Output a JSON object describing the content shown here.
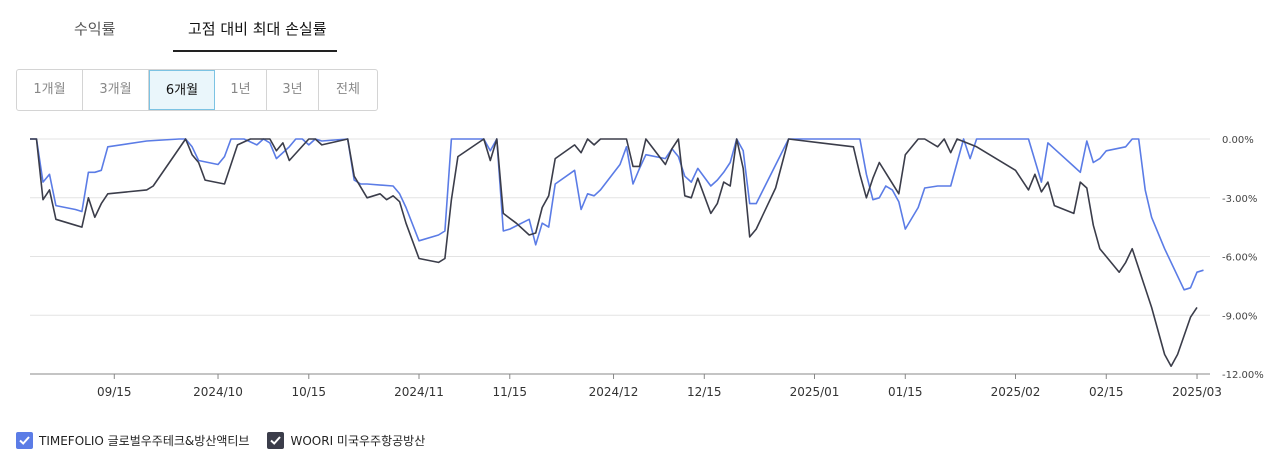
{
  "tabs": [
    {
      "label": "수익률",
      "active": false
    },
    {
      "label": "고점 대비 최대 손실률",
      "active": true
    }
  ],
  "periods": [
    {
      "label": "1개월",
      "active": false
    },
    {
      "label": "3개월",
      "active": false
    },
    {
      "label": "6개월",
      "active": true
    },
    {
      "label": "1년",
      "active": false
    },
    {
      "label": "3년",
      "active": false
    },
    {
      "label": "전체",
      "active": false
    }
  ],
  "legend": [
    {
      "label": "TIMEFOLIO 글로벌우주테크&방산액티브",
      "color": "#5b7ce6",
      "checked": true
    },
    {
      "label": "WOORI 미국우주항공방산",
      "color": "#3b3d4a",
      "checked": true
    }
  ],
  "chart_data": {
    "type": "line",
    "x_ticks": [
      "09/15",
      "2024/10",
      "10/15",
      "2024/11",
      "11/15",
      "2024/12",
      "12/15",
      "2025/01",
      "01/15",
      "2025/02",
      "02/15",
      "2025/03"
    ],
    "y_ticks": [
      "0.00%",
      "-3.00%",
      "-6.00%",
      "-9.00%",
      "-12.00%"
    ],
    "ylim": [
      -12,
      0
    ],
    "xlim": [
      "2024-09-02",
      "2025-03-03"
    ],
    "grid": true,
    "series": [
      {
        "name": "TIMEFOLIO 글로벌우주테크&방산액티브",
        "color": "#5b7ce6",
        "points": [
          [
            "2024-09-02",
            0
          ],
          [
            "2024-09-03",
            0
          ],
          [
            "2024-09-04",
            -2.2
          ],
          [
            "2024-09-05",
            -1.8
          ],
          [
            "2024-09-06",
            -3.4
          ],
          [
            "2024-09-09",
            -3.6
          ],
          [
            "2024-09-10",
            -3.7
          ],
          [
            "2024-09-11",
            -1.7
          ],
          [
            "2024-09-12",
            -1.7
          ],
          [
            "2024-09-13",
            -1.6
          ],
          [
            "2024-09-14",
            -0.4
          ],
          [
            "2024-09-20",
            -0.1
          ],
          [
            "2024-09-25",
            0
          ],
          [
            "2024-09-26",
            0
          ],
          [
            "2024-09-27",
            -0.4
          ],
          [
            "2024-09-28",
            -1.1
          ],
          [
            "2024-10-01",
            -1.3
          ],
          [
            "2024-10-02",
            -0.9
          ],
          [
            "2024-10-03",
            0
          ],
          [
            "2024-10-05",
            0
          ],
          [
            "2024-10-07",
            -0.3
          ],
          [
            "2024-10-08",
            0
          ],
          [
            "2024-10-09",
            -0.2
          ],
          [
            "2024-10-10",
            -1.0
          ],
          [
            "2024-10-12",
            -0.4
          ],
          [
            "2024-10-13",
            0
          ],
          [
            "2024-10-14",
            0
          ],
          [
            "2024-10-15",
            -0.3
          ],
          [
            "2024-10-16",
            0
          ],
          [
            "2024-10-17",
            -0.1
          ],
          [
            "2024-10-21",
            0
          ],
          [
            "2024-10-22",
            -2.1
          ],
          [
            "2024-10-23",
            -2.3
          ],
          [
            "2024-10-24",
            -2.3
          ],
          [
            "2024-10-28",
            -2.4
          ],
          [
            "2024-10-29",
            -2.8
          ],
          [
            "2024-10-30",
            -3.5
          ],
          [
            "2024-11-01",
            -5.2
          ],
          [
            "2024-11-04",
            -4.9
          ],
          [
            "2024-11-05",
            -4.7
          ],
          [
            "2024-11-06",
            0
          ],
          [
            "2024-11-08",
            0
          ],
          [
            "2024-11-11",
            0
          ],
          [
            "2024-11-12",
            -0.6
          ],
          [
            "2024-11-13",
            0
          ],
          [
            "2024-11-14",
            -4.7
          ],
          [
            "2024-11-15",
            -4.6
          ],
          [
            "2024-11-18",
            -4.1
          ],
          [
            "2024-11-19",
            -5.4
          ],
          [
            "2024-11-20",
            -4.3
          ],
          [
            "2024-11-21",
            -4.5
          ],
          [
            "2024-11-22",
            -2.3
          ],
          [
            "2024-11-25",
            -1.6
          ],
          [
            "2024-11-26",
            -3.6
          ],
          [
            "2024-11-27",
            -2.8
          ],
          [
            "2024-11-28",
            -2.9
          ],
          [
            "2024-11-29",
            -2.6
          ],
          [
            "2024-12-02",
            -1.3
          ],
          [
            "2024-12-03",
            -0.4
          ],
          [
            "2024-12-04",
            -2.3
          ],
          [
            "2024-12-05",
            -1.5
          ],
          [
            "2024-12-06",
            -0.8
          ],
          [
            "2024-12-09",
            -1.0
          ],
          [
            "2024-12-10",
            -0.5
          ],
          [
            "2024-12-11",
            -0.9
          ],
          [
            "2024-12-12",
            -1.9
          ],
          [
            "2024-12-13",
            -2.2
          ],
          [
            "2024-12-14",
            -1.5
          ],
          [
            "2024-12-16",
            -2.4
          ],
          [
            "2024-12-17",
            -2.1
          ],
          [
            "2024-12-18",
            -1.7
          ],
          [
            "2024-12-19",
            -1.2
          ],
          [
            "2024-12-20",
            0
          ],
          [
            "2024-12-21",
            -0.6
          ],
          [
            "2024-12-22",
            -3.3
          ],
          [
            "2024-12-23",
            -3.3
          ],
          [
            "2024-12-28",
            0
          ],
          [
            "2025-01-02",
            0
          ],
          [
            "2025-01-07",
            0
          ],
          [
            "2025-01-08",
            0
          ],
          [
            "2025-01-09",
            -1.8
          ],
          [
            "2025-01-10",
            -3.1
          ],
          [
            "2025-01-11",
            -3.0
          ],
          [
            "2025-01-12",
            -2.4
          ],
          [
            "2025-01-13",
            -2.6
          ],
          [
            "2025-01-14",
            -3.2
          ],
          [
            "2025-01-15",
            -4.6
          ],
          [
            "2025-01-17",
            -3.5
          ],
          [
            "2025-01-18",
            -2.5
          ],
          [
            "2025-01-20",
            -2.4
          ],
          [
            "2025-01-22",
            -2.4
          ],
          [
            "2025-01-24",
            0
          ],
          [
            "2025-01-25",
            -1.0
          ],
          [
            "2025-01-26",
            0
          ],
          [
            "2025-01-30",
            0
          ],
          [
            "2025-02-03",
            0
          ],
          [
            "2025-02-05",
            -2.2
          ],
          [
            "2025-02-06",
            -0.2
          ],
          [
            "2025-02-07",
            -0.5
          ],
          [
            "2025-02-08",
            -0.8
          ],
          [
            "2025-02-10",
            -1.4
          ],
          [
            "2025-02-11",
            -1.7
          ],
          [
            "2025-02-12",
            -0.1
          ],
          [
            "2025-02-13",
            -1.2
          ],
          [
            "2025-02-14",
            -1.0
          ],
          [
            "2025-02-15",
            -0.6
          ],
          [
            "2025-02-18",
            -0.4
          ],
          [
            "2025-02-19",
            0
          ],
          [
            "2025-02-20",
            0
          ],
          [
            "2025-02-21",
            -2.6
          ],
          [
            "2025-02-22",
            -4.0
          ],
          [
            "2025-02-24",
            -5.6
          ],
          [
            "2025-02-27",
            -7.7
          ],
          [
            "2025-02-28",
            -7.6
          ],
          [
            "2025-03-01",
            -6.8
          ],
          [
            "2025-03-02",
            -6.7
          ]
        ]
      },
      {
        "name": "WOORI 미국우주항공방산",
        "color": "#3b3d4a",
        "points": [
          [
            "2024-09-02",
            0
          ],
          [
            "2024-09-03",
            0
          ],
          [
            "2024-09-04",
            -3.1
          ],
          [
            "2024-09-05",
            -2.6
          ],
          [
            "2024-09-06",
            -4.1
          ],
          [
            "2024-09-09",
            -4.4
          ],
          [
            "2024-09-10",
            -4.5
          ],
          [
            "2024-09-11",
            -3.0
          ],
          [
            "2024-09-12",
            -4.0
          ],
          [
            "2024-09-13",
            -3.3
          ],
          [
            "2024-09-14",
            -2.8
          ],
          [
            "2024-09-20",
            -2.6
          ],
          [
            "2024-09-21",
            -2.4
          ],
          [
            "2024-09-26",
            0
          ],
          [
            "2024-09-27",
            -0.8
          ],
          [
            "2024-09-28",
            -1.2
          ],
          [
            "2024-09-29",
            -2.1
          ],
          [
            "2024-10-02",
            -2.3
          ],
          [
            "2024-10-04",
            -0.3
          ],
          [
            "2024-10-06",
            0
          ],
          [
            "2024-10-09",
            0
          ],
          [
            "2024-10-10",
            -0.6
          ],
          [
            "2024-10-11",
            -0.2
          ],
          [
            "2024-10-12",
            -1.1
          ],
          [
            "2024-10-15",
            0
          ],
          [
            "2024-10-16",
            0
          ],
          [
            "2024-10-17",
            -0.3
          ],
          [
            "2024-10-21",
            0
          ],
          [
            "2024-10-22",
            -1.9
          ],
          [
            "2024-10-24",
            -3.0
          ],
          [
            "2024-10-26",
            -2.8
          ],
          [
            "2024-10-27",
            -3.1
          ],
          [
            "2024-10-28",
            -2.9
          ],
          [
            "2024-10-29",
            -3.2
          ],
          [
            "2024-10-30",
            -4.3
          ],
          [
            "2024-11-01",
            -6.1
          ],
          [
            "2024-11-04",
            -6.3
          ],
          [
            "2024-11-05",
            -6.1
          ],
          [
            "2024-11-06",
            -3.1
          ],
          [
            "2024-11-07",
            -0.9
          ],
          [
            "2024-11-11",
            0
          ],
          [
            "2024-11-12",
            -1.1
          ],
          [
            "2024-11-13",
            0
          ],
          [
            "2024-11-14",
            -3.8
          ],
          [
            "2024-11-16",
            -4.3
          ],
          [
            "2024-11-18",
            -4.9
          ],
          [
            "2024-11-19",
            -4.8
          ],
          [
            "2024-11-20",
            -3.5
          ],
          [
            "2024-11-21",
            -2.9
          ],
          [
            "2024-11-22",
            -1.0
          ],
          [
            "2024-11-25",
            -0.3
          ],
          [
            "2024-11-26",
            -0.7
          ],
          [
            "2024-11-27",
            0
          ],
          [
            "2024-11-28",
            -0.3
          ],
          [
            "2024-11-29",
            0
          ],
          [
            "2024-12-02",
            0
          ],
          [
            "2024-12-03",
            0
          ],
          [
            "2024-12-04",
            -1.4
          ],
          [
            "2024-12-05",
            -1.4
          ],
          [
            "2024-12-06",
            0
          ],
          [
            "2024-12-09",
            -1.3
          ],
          [
            "2024-12-10",
            -0.5
          ],
          [
            "2024-12-11",
            0
          ],
          [
            "2024-12-12",
            -2.9
          ],
          [
            "2024-12-13",
            -3.0
          ],
          [
            "2024-12-14",
            -2.0
          ],
          [
            "2024-12-16",
            -3.8
          ],
          [
            "2024-12-17",
            -3.3
          ],
          [
            "2024-12-18",
            -2.2
          ],
          [
            "2024-12-19",
            -2.4
          ],
          [
            "2024-12-20",
            0
          ],
          [
            "2024-12-21",
            -1.5
          ],
          [
            "2024-12-22",
            -5.0
          ],
          [
            "2024-12-23",
            -4.6
          ],
          [
            "2024-12-26",
            -2.5
          ],
          [
            "2024-12-28",
            0
          ],
          [
            "2025-01-02",
            -0.2
          ],
          [
            "2025-01-07",
            -0.4
          ],
          [
            "2025-01-08",
            -1.8
          ],
          [
            "2025-01-09",
            -3.0
          ],
          [
            "2025-01-10",
            -2.0
          ],
          [
            "2025-01-11",
            -1.2
          ],
          [
            "2025-01-14",
            -2.8
          ],
          [
            "2025-01-15",
            -0.8
          ],
          [
            "2025-01-17",
            0
          ],
          [
            "2025-01-18",
            0
          ],
          [
            "2025-01-20",
            -0.4
          ],
          [
            "2025-01-21",
            0
          ],
          [
            "2025-01-22",
            -0.7
          ],
          [
            "2025-01-23",
            0
          ],
          [
            "2025-01-26",
            -0.4
          ],
          [
            "2025-02-01",
            -1.6
          ],
          [
            "2025-02-03",
            -2.6
          ],
          [
            "2025-02-04",
            -1.8
          ],
          [
            "2025-02-05",
            -2.7
          ],
          [
            "2025-02-06",
            -2.2
          ],
          [
            "2025-02-07",
            -3.4
          ],
          [
            "2025-02-10",
            -3.8
          ],
          [
            "2025-02-11",
            -2.2
          ],
          [
            "2025-02-12",
            -2.5
          ],
          [
            "2025-02-13",
            -4.4
          ],
          [
            "2025-02-14",
            -5.6
          ],
          [
            "2025-02-17",
            -6.8
          ],
          [
            "2025-02-18",
            -6.3
          ],
          [
            "2025-02-19",
            -5.6
          ],
          [
            "2025-02-22",
            -8.6
          ],
          [
            "2025-02-24",
            -11.0
          ],
          [
            "2025-02-25",
            -11.6
          ],
          [
            "2025-02-26",
            -11.0
          ],
          [
            "2025-02-28",
            -9.1
          ],
          [
            "2025-03-01",
            -8.6
          ]
        ]
      }
    ]
  }
}
